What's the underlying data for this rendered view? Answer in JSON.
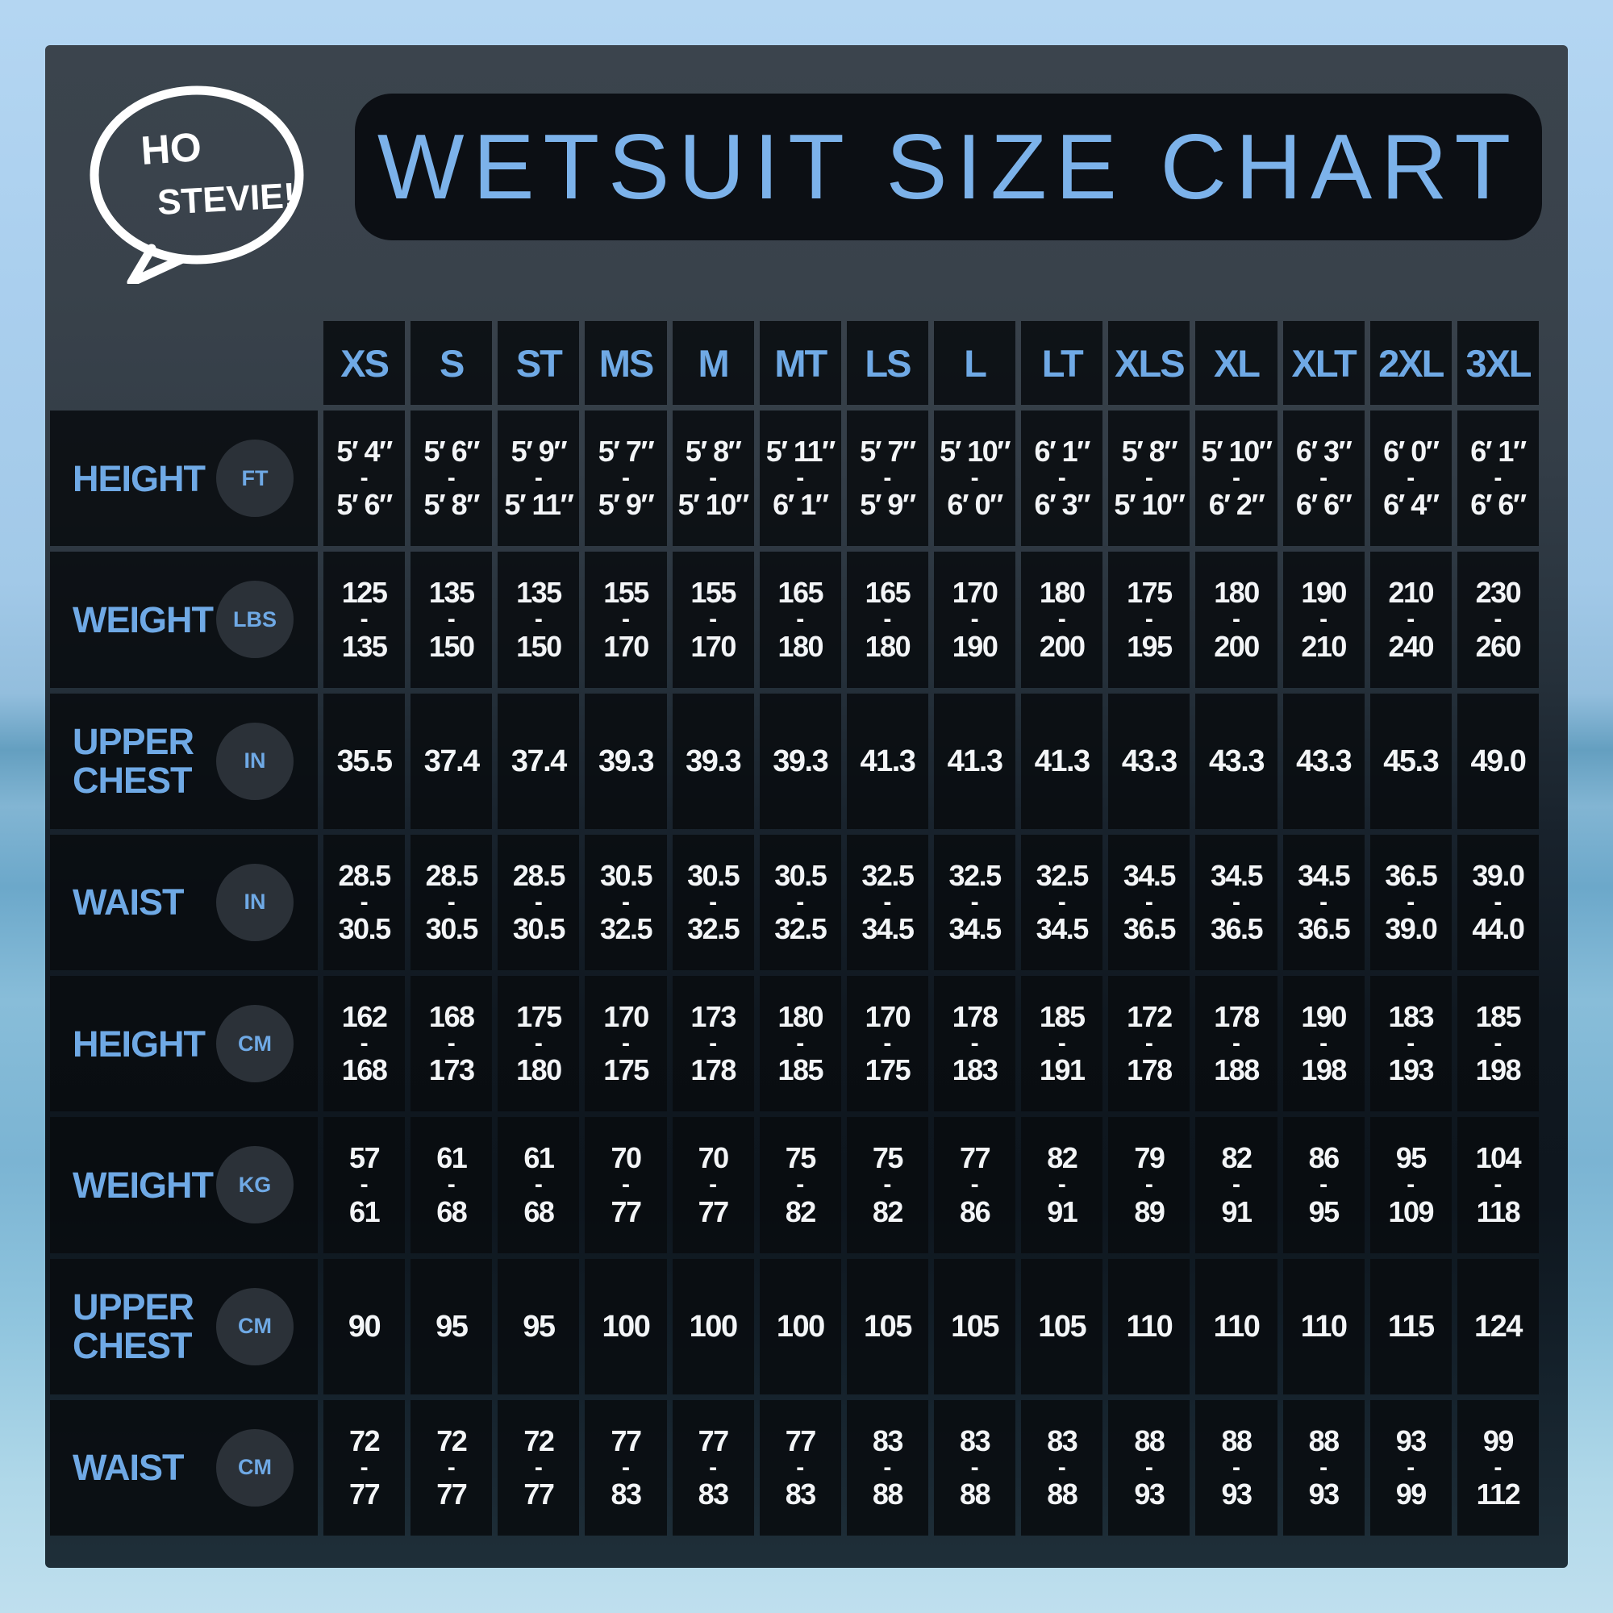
{
  "colors": {
    "accent_blue": "#6fa9e5",
    "title_blue": "#7cb2ea",
    "cell_bg": "#0c0f14",
    "panel_top": "#39424b",
    "value_text": "#f3f5f7",
    "sky_blue": "#aacfee"
  },
  "logo": {
    "line1": "HO",
    "line2": "STEVIE!"
  },
  "header": {
    "title": "WETSUIT SIZE CHART"
  },
  "chart_data": {
    "type": "table",
    "title": "WETSUIT SIZE CHART",
    "brand": "HO STEVIE!",
    "columns": [
      "XS",
      "S",
      "ST",
      "MS",
      "M",
      "MT",
      "LS",
      "L",
      "LT",
      "XLS",
      "XL",
      "XLT",
      "2XL",
      "3XL"
    ],
    "rows": [
      {
        "label": "HEIGHT",
        "unit": "FT",
        "values": [
          [
            "5′ 4″",
            "5′ 6″"
          ],
          [
            "5′ 6″",
            "5′ 8″"
          ],
          [
            "5′ 9″",
            "5′ 11″"
          ],
          [
            "5′ 7″",
            "5′ 9″"
          ],
          [
            "5′ 8″",
            "5′ 10″"
          ],
          [
            "5′ 11″",
            "6′ 1″"
          ],
          [
            "5′ 7″",
            "5′ 9″"
          ],
          [
            "5′ 10″",
            "6′ 0″"
          ],
          [
            "6′ 1″",
            "6′ 3″"
          ],
          [
            "5′ 8″",
            "5′ 10″"
          ],
          [
            "5′ 10″",
            "6′ 2″"
          ],
          [
            "6′ 3″",
            "6′ 6″"
          ],
          [
            "6′ 0″",
            "6′ 4″"
          ],
          [
            "6′ 1″",
            "6′ 6″"
          ]
        ]
      },
      {
        "label": "WEIGHT",
        "unit": "LBS",
        "values": [
          [
            "125",
            "135"
          ],
          [
            "135",
            "150"
          ],
          [
            "135",
            "150"
          ],
          [
            "155",
            "170"
          ],
          [
            "155",
            "170"
          ],
          [
            "165",
            "180"
          ],
          [
            "165",
            "180"
          ],
          [
            "170",
            "190"
          ],
          [
            "180",
            "200"
          ],
          [
            "175",
            "195"
          ],
          [
            "180",
            "200"
          ],
          [
            "190",
            "210"
          ],
          [
            "210",
            "240"
          ],
          [
            "230",
            "260"
          ]
        ]
      },
      {
        "label": "UPPER CHEST",
        "unit": "IN",
        "values": [
          "35.5",
          "37.4",
          "37.4",
          "39.3",
          "39.3",
          "39.3",
          "41.3",
          "41.3",
          "41.3",
          "43.3",
          "43.3",
          "43.3",
          "45.3",
          "49.0"
        ]
      },
      {
        "label": "WAIST",
        "unit": "IN",
        "values": [
          [
            "28.5",
            "30.5"
          ],
          [
            "28.5",
            "30.5"
          ],
          [
            "28.5",
            "30.5"
          ],
          [
            "30.5",
            "32.5"
          ],
          [
            "30.5",
            "32.5"
          ],
          [
            "30.5",
            "32.5"
          ],
          [
            "32.5",
            "34.5"
          ],
          [
            "32.5",
            "34.5"
          ],
          [
            "32.5",
            "34.5"
          ],
          [
            "34.5",
            "36.5"
          ],
          [
            "34.5",
            "36.5"
          ],
          [
            "34.5",
            "36.5"
          ],
          [
            "36.5",
            "39.0"
          ],
          [
            "39.0",
            "44.0"
          ]
        ]
      },
      {
        "label": "HEIGHT",
        "unit": "CM",
        "values": [
          [
            "162",
            "168"
          ],
          [
            "168",
            "173"
          ],
          [
            "175",
            "180"
          ],
          [
            "170",
            "175"
          ],
          [
            "173",
            "178"
          ],
          [
            "180",
            "185"
          ],
          [
            "170",
            "175"
          ],
          [
            "178",
            "183"
          ],
          [
            "185",
            "191"
          ],
          [
            "172",
            "178"
          ],
          [
            "178",
            "188"
          ],
          [
            "190",
            "198"
          ],
          [
            "183",
            "193"
          ],
          [
            "185",
            "198"
          ]
        ]
      },
      {
        "label": "WEIGHT",
        "unit": "KG",
        "values": [
          [
            "57",
            "61"
          ],
          [
            "61",
            "68"
          ],
          [
            "61",
            "68"
          ],
          [
            "70",
            "77"
          ],
          [
            "70",
            "77"
          ],
          [
            "75",
            "82"
          ],
          [
            "75",
            "82"
          ],
          [
            "77",
            "86"
          ],
          [
            "82",
            "91"
          ],
          [
            "79",
            "89"
          ],
          [
            "82",
            "91"
          ],
          [
            "86",
            "95"
          ],
          [
            "95",
            "109"
          ],
          [
            "104",
            "118"
          ]
        ]
      },
      {
        "label": "UPPER CHEST",
        "unit": "CM",
        "values": [
          "90",
          "95",
          "95",
          "100",
          "100",
          "100",
          "105",
          "105",
          "105",
          "110",
          "110",
          "110",
          "115",
          "124"
        ]
      },
      {
        "label": "WAIST",
        "unit": "CM",
        "values": [
          [
            "72",
            "77"
          ],
          [
            "72",
            "77"
          ],
          [
            "72",
            "77"
          ],
          [
            "77",
            "83"
          ],
          [
            "77",
            "83"
          ],
          [
            "77",
            "83"
          ],
          [
            "83",
            "88"
          ],
          [
            "83",
            "88"
          ],
          [
            "83",
            "88"
          ],
          [
            "88",
            "93"
          ],
          [
            "88",
            "93"
          ],
          [
            "88",
            "93"
          ],
          [
            "93",
            "99"
          ],
          [
            "99",
            "112"
          ]
        ]
      }
    ]
  }
}
